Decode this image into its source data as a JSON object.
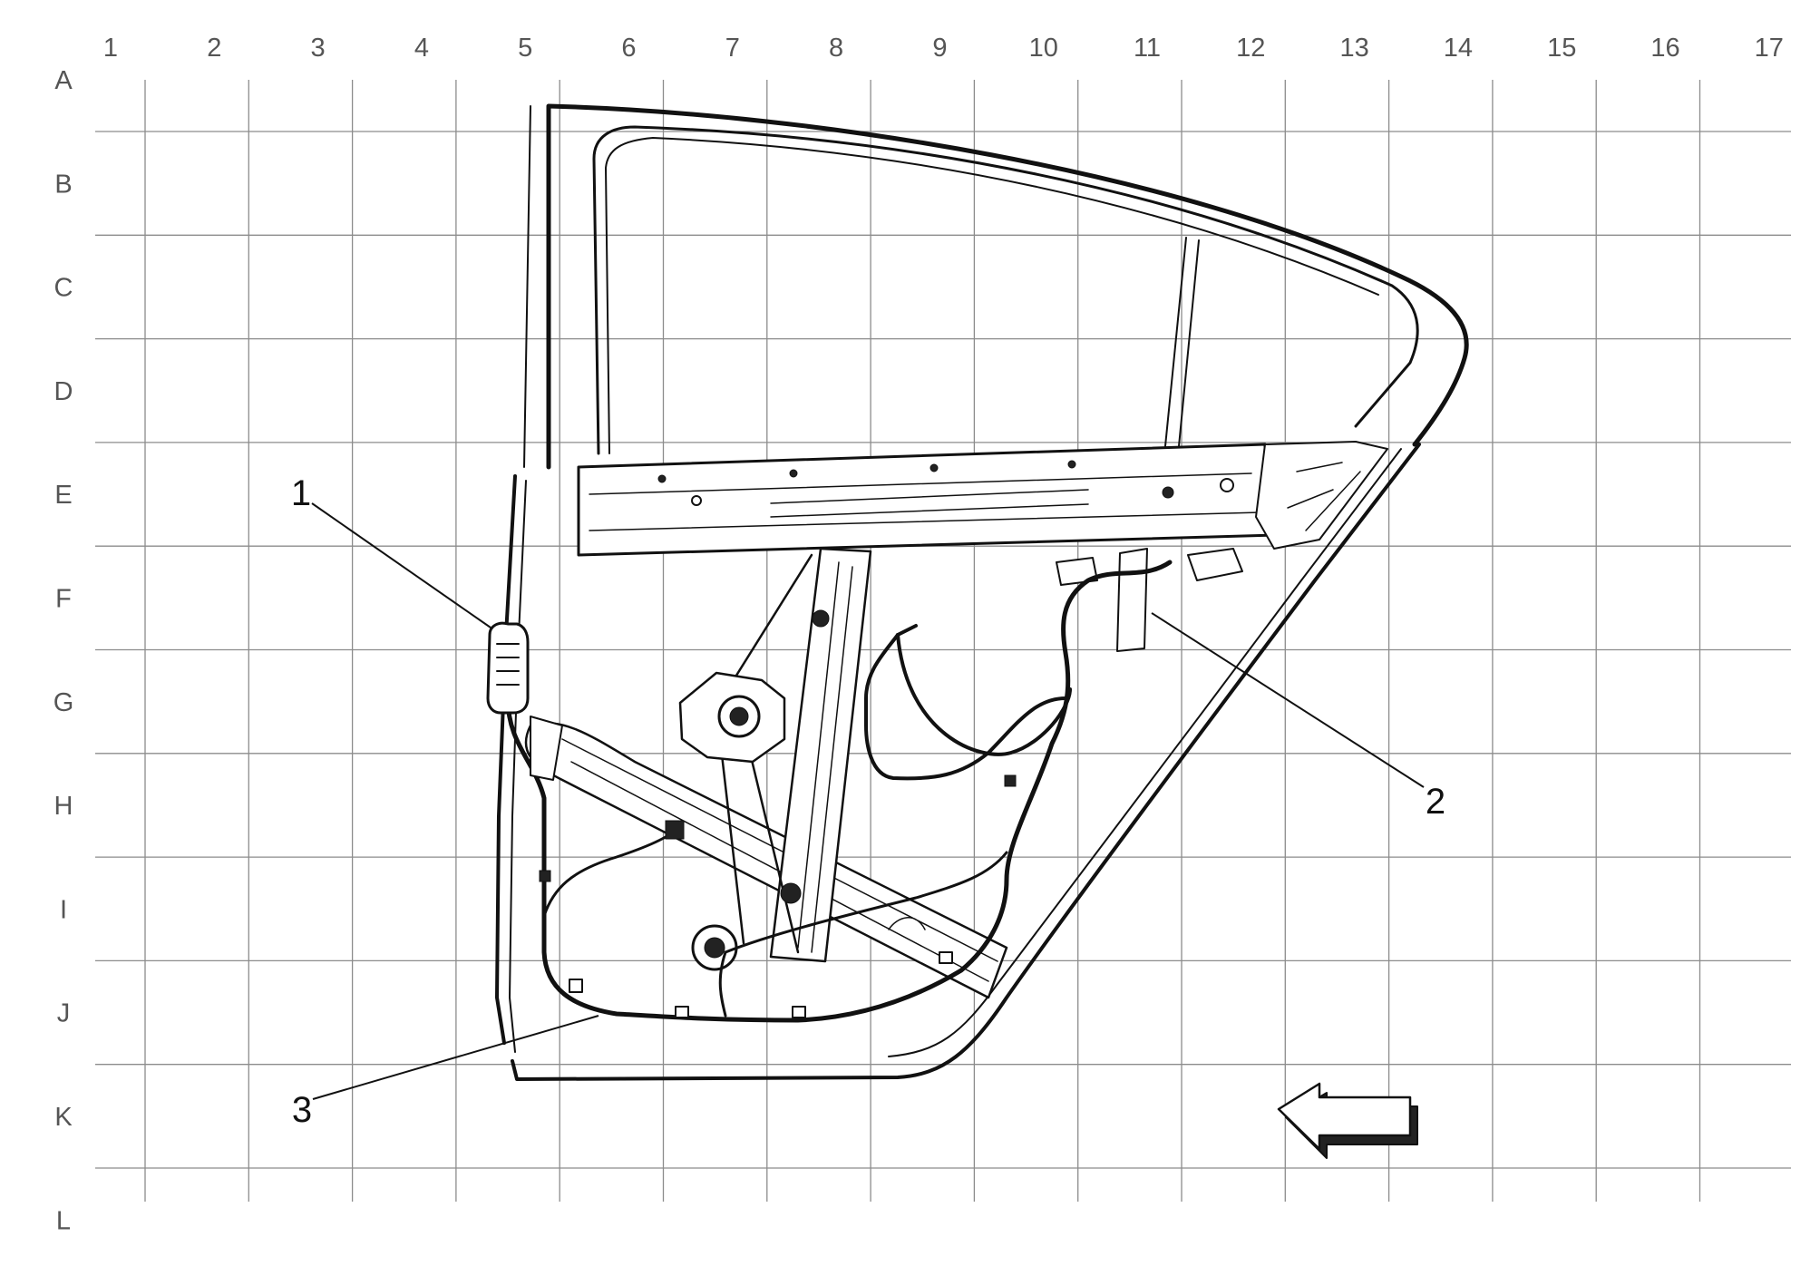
{
  "grid": {
    "columns": [
      "1",
      "2",
      "3",
      "4",
      "5",
      "6",
      "7",
      "8",
      "9",
      "10",
      "11",
      "12",
      "13",
      "14",
      "15",
      "16",
      "17"
    ],
    "rows": [
      "A",
      "B",
      "C",
      "D",
      "E",
      "F",
      "G",
      "H",
      "I",
      "J",
      "K",
      "L"
    ]
  },
  "callouts": [
    {
      "id": "1",
      "label": "1"
    },
    {
      "id": "2",
      "label": "2"
    },
    {
      "id": "3",
      "label": "3"
    }
  ],
  "direction_arrow": {
    "icon": "direction-arrow-left-icon",
    "points": "left"
  },
  "colors": {
    "grid": "#8c8c8c",
    "ink": "#111111",
    "background": "#ffffff"
  }
}
